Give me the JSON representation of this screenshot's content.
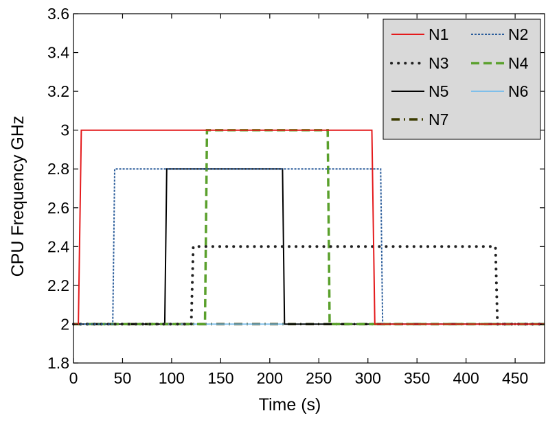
{
  "chart_data": {
    "type": "line",
    "title": "",
    "xlabel": "Time (s)",
    "ylabel": "CPU Frequency GHz",
    "xlim": [
      0,
      480
    ],
    "ylim": [
      1.8,
      3.6
    ],
    "xticks": [
      0,
      50,
      100,
      150,
      200,
      250,
      300,
      350,
      400,
      450
    ],
    "yticks": [
      1.8,
      2.0,
      2.2,
      2.4,
      2.6,
      2.8,
      3.0,
      3.2,
      3.4,
      3.6
    ],
    "xtick_labels": [
      "0",
      "50",
      "100",
      "150",
      "200",
      "250",
      "300",
      "350",
      "400",
      "450"
    ],
    "ytick_labels": [
      "1.8",
      "2",
      "2.2",
      "2.4",
      "2.6",
      "2.8",
      "3",
      "3.2",
      "3.4",
      "3.6"
    ],
    "grid": false,
    "legend_position": "top-right",
    "series": [
      {
        "name": "N1",
        "color": "#e41a1c",
        "dash": "solid",
        "x": [
          0,
          5,
          8,
          304,
          307,
          480
        ],
        "y": [
          2.0,
          2.0,
          3.0,
          3.0,
          2.0,
          2.0
        ]
      },
      {
        "name": "N2",
        "color": "#2b5d9b",
        "dash": "dotted",
        "x": [
          0,
          40,
          42,
          313,
          315,
          480
        ],
        "y": [
          2.0,
          2.0,
          2.8,
          2.8,
          2.0,
          2.0
        ]
      },
      {
        "name": "N3",
        "color": "#222222",
        "dash": "dot",
        "x": [
          0,
          120,
          122,
          430,
          432,
          480
        ],
        "y": [
          2.0,
          2.0,
          2.4,
          2.4,
          2.0,
          2.0
        ]
      },
      {
        "name": "N4",
        "color": "#5aa02c",
        "dash": "dashed",
        "x": [
          0,
          134,
          136,
          259,
          261,
          480
        ],
        "y": [
          2.0,
          2.0,
          3.0,
          3.0,
          2.0,
          2.0
        ]
      },
      {
        "name": "N5",
        "color": "#000000",
        "dash": "solid",
        "x": [
          0,
          93,
          95,
          213,
          215,
          480
        ],
        "y": [
          2.0,
          2.0,
          2.8,
          2.8,
          2.0,
          2.0
        ]
      },
      {
        "name": "N6",
        "color": "#7fbfea",
        "dash": "solid",
        "x": [
          0,
          480
        ],
        "y": [
          2.0,
          2.0
        ]
      },
      {
        "name": "N7",
        "color": "#3b3b00",
        "dash": "dashdot",
        "x": [
          0,
          480
        ],
        "y": [
          2.0,
          2.0
        ]
      }
    ]
  }
}
